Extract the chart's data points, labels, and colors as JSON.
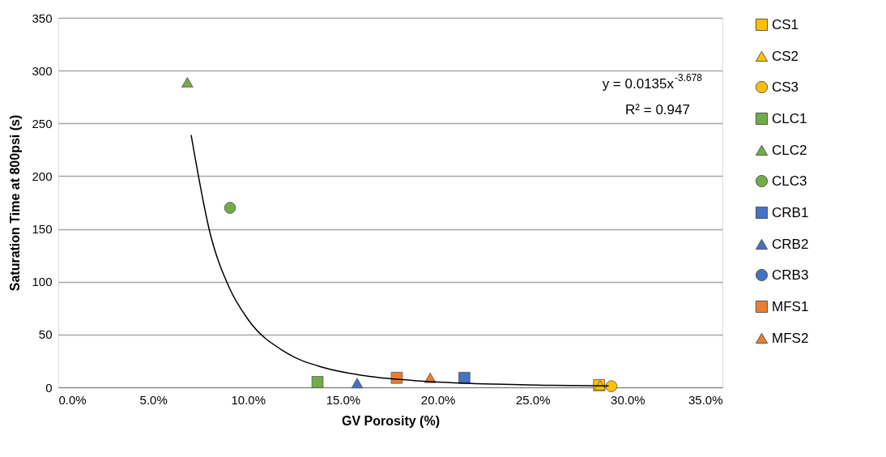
{
  "chart_data": {
    "type": "scatter",
    "xlabel": "GV Porosity (%)",
    "ylabel": "Saturation Time at 800psi (s)",
    "xlim": [
      0,
      0.35
    ],
    "ylim": [
      0,
      350
    ],
    "xticks": [
      {
        "value": 0,
        "label": "0.0%"
      },
      {
        "value": 0.05,
        "label": "5.0%"
      },
      {
        "value": 0.1,
        "label": "10.0%"
      },
      {
        "value": 0.15,
        "label": "15.0%"
      },
      {
        "value": 0.2,
        "label": "20.0%"
      },
      {
        "value": 0.25,
        "label": "25.0%"
      },
      {
        "value": 0.3,
        "label": "30.0%"
      },
      {
        "value": 0.35,
        "label": "35.0%"
      }
    ],
    "yticks": [
      0,
      50,
      100,
      150,
      200,
      250,
      300,
      350
    ],
    "grid": "y",
    "legend": "right",
    "annotations": [
      "y = 0.0135x$^{-3.678}$",
      "R² = 0.947"
    ],
    "series": [
      {
        "name": "CS1",
        "color": "#ffc000",
        "marker": "square",
        "x": [
          0.285
        ],
        "values": [
          2
        ]
      },
      {
        "name": "CS2",
        "color": "#ffc000",
        "marker": "triangle",
        "x": [
          0.2855
        ],
        "values": [
          2
        ]
      },
      {
        "name": "CS3",
        "color": "#ffc000",
        "marker": "circle",
        "x": [
          0.2915
        ],
        "values": [
          1
        ]
      },
      {
        "name": "CLC1",
        "color": "#70ad47",
        "marker": "square",
        "x": [
          0.1366
        ],
        "values": [
          5
        ]
      },
      {
        "name": "CLC2",
        "color": "#70ad47",
        "marker": "triangle",
        "x": [
          0.068
        ],
        "values": [
          289
        ]
      },
      {
        "name": "CLC3",
        "color": "#70ad47",
        "marker": "circle",
        "x": [
          0.0905
        ],
        "values": [
          170
        ]
      },
      {
        "name": "CRB1",
        "color": "#4472c4",
        "marker": "square",
        "x": [
          0.214
        ],
        "values": [
          9
        ]
      },
      {
        "name": "CRB2",
        "color": "#4472c4",
        "marker": "triangle",
        "x": [
          0.1575
        ],
        "values": [
          4
        ]
      },
      {
        "name": "CRB3",
        "color": "#4472c4",
        "marker": "circle",
        "x": [
          null
        ],
        "values": [
          null
        ]
      },
      {
        "name": "MFS1",
        "color": "#ed7d31",
        "marker": "square",
        "x": [
          0.1784
        ],
        "values": [
          9
        ]
      },
      {
        "name": "MFS2",
        "color": "#ed7d31",
        "marker": "triangle",
        "x": [
          0.196
        ],
        "values": [
          9
        ]
      },
      {
        "type": "line",
        "color": "#000000",
        "x": [
          0.07,
          0.08,
          0.09,
          0.1,
          0.12,
          0.14,
          0.16,
          0.18,
          0.2,
          0.23,
          0.26,
          0.29
        ],
        "values": [
          239,
          146,
          94.8,
          64.3,
          32.9,
          18.6,
          11.4,
          7.4,
          5.0,
          3.0,
          1.9,
          1.3
        ]
      }
    ]
  }
}
